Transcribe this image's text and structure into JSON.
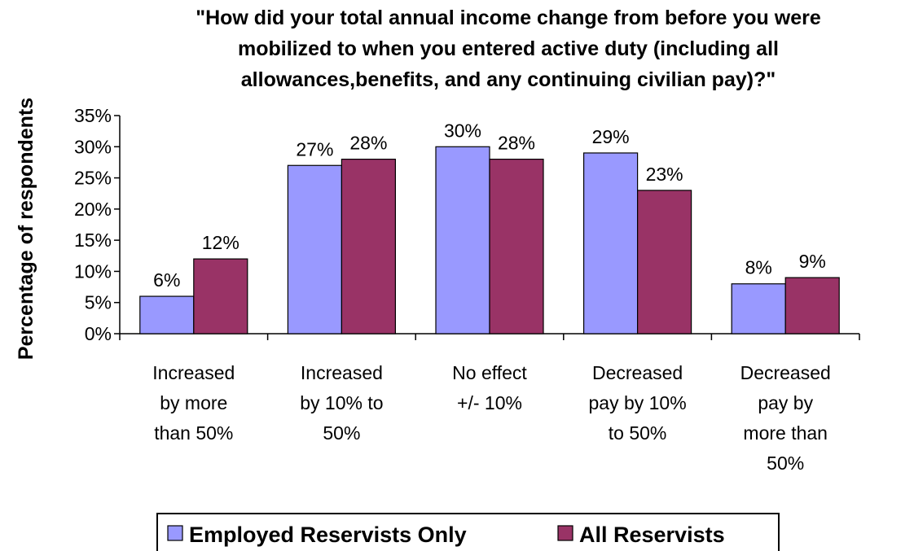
{
  "chart_data": {
    "type": "bar",
    "title_lines": [
      "\"How did your total annual income change from before you were",
      "mobilized to when you entered active duty (including all",
      "allowances,benefits, and any continuing civilian pay)?\""
    ],
    "ylabel": "Percentage of respondents",
    "xlabel": "",
    "ylim": [
      0,
      35
    ],
    "ytick_values": [
      0,
      5,
      10,
      15,
      20,
      25,
      30,
      35
    ],
    "ytick_labels": [
      "0%",
      "5%",
      "10%",
      "15%",
      "20%",
      "25%",
      "30%",
      "35%"
    ],
    "categories": [
      [
        "Increased",
        "by more",
        "than 50%"
      ],
      [
        "Increased",
        "by 10% to",
        "50%"
      ],
      [
        "No effect",
        "+/- 10%"
      ],
      [
        "Decreased",
        "pay by 10%",
        "to 50%"
      ],
      [
        "Decreased",
        "pay by",
        "more than",
        "50%"
      ]
    ],
    "series": [
      {
        "name": "Employed Reservists Only",
        "color": "#9999ff",
        "values": [
          6,
          27,
          30,
          29,
          8
        ],
        "labels": [
          "6%",
          "27%",
          "30%",
          "29%",
          "8%"
        ]
      },
      {
        "name": "All Reservists",
        "color": "#993366",
        "values": [
          12,
          28,
          28,
          23,
          9
        ],
        "labels": [
          "12%",
          "28%",
          "28%",
          "23%",
          "9%"
        ]
      }
    ],
    "legend_position": "bottom",
    "grid": false
  }
}
